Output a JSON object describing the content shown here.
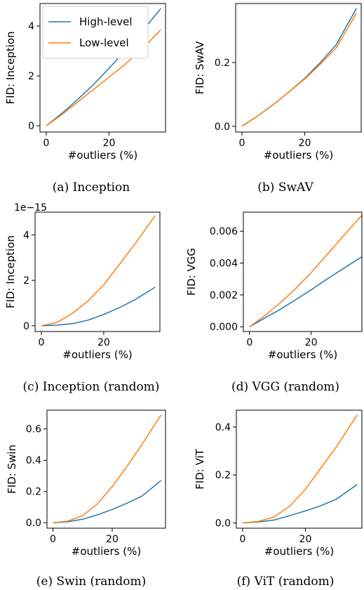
{
  "chart_data": [
    {
      "type": "line",
      "caption": "(a) Inception",
      "xlabel": "#outliers (%)",
      "ylabel": "FID: Inception",
      "xlim": [
        -2,
        38
      ],
      "ylim": [
        -0.25,
        4.9
      ],
      "xticks": [
        0,
        20
      ],
      "yticks": [
        0,
        2,
        4
      ],
      "ytick_labels": [
        "0",
        "2",
        "4"
      ],
      "scale_label": "",
      "legend": {
        "position": "top-left",
        "entries": [
          "High-level",
          "Low-level"
        ]
      },
      "series": [
        {
          "name": "High-level",
          "color": "#1f77b4",
          "x": [
            0,
            5,
            10,
            15,
            20,
            25,
            30,
            36.5
          ],
          "y": [
            0,
            0.5,
            1.05,
            1.65,
            2.3,
            3.0,
            3.7,
            4.7
          ]
        },
        {
          "name": "Low-level",
          "color": "#ff7f0e",
          "x": [
            0,
            5,
            10,
            15,
            20,
            25,
            30,
            36.5
          ],
          "y": [
            0,
            0.45,
            0.95,
            1.45,
            1.95,
            2.45,
            3.0,
            3.85
          ]
        }
      ]
    },
    {
      "type": "line",
      "caption": "(b) SwAV",
      "xlabel": "#outliers (%)",
      "ylabel": "FID: SwAV",
      "xlim": [
        -2,
        38
      ],
      "ylim": [
        -0.018,
        0.385
      ],
      "xticks": [
        0,
        20
      ],
      "yticks": [
        0,
        0.2
      ],
      "ytick_labels": [
        "0.0",
        "0.2"
      ],
      "scale_label": "",
      "series": [
        {
          "name": "High-level",
          "color": "#1f77b4",
          "x": [
            0,
            5,
            10,
            15,
            20,
            25,
            30,
            36.5
          ],
          "y": [
            0,
            0.032,
            0.068,
            0.108,
            0.15,
            0.2,
            0.255,
            0.37
          ]
        },
        {
          "name": "Low-level",
          "color": "#ff7f0e",
          "x": [
            0,
            5,
            10,
            15,
            20,
            25,
            30,
            36.5
          ],
          "y": [
            0,
            0.032,
            0.068,
            0.108,
            0.148,
            0.195,
            0.245,
            0.355
          ]
        }
      ]
    },
    {
      "type": "line",
      "caption": "(c) Inception (random)",
      "xlabel": "#outliers (%)",
      "ylabel": "FID: Inception",
      "xlim": [
        -2,
        38
      ],
      "ylim": [
        -0.25,
        5.0
      ],
      "xticks": [
        0,
        20
      ],
      "yticks": [
        0,
        2,
        4
      ],
      "ytick_labels": [
        "0",
        "2",
        "4"
      ],
      "scale_label": "1e−15",
      "series": [
        {
          "name": "High-level",
          "color": "#1f77b4",
          "x": [
            0,
            5,
            10,
            15,
            20,
            25,
            30,
            36.5
          ],
          "y": [
            0,
            0.03,
            0.1,
            0.25,
            0.5,
            0.8,
            1.15,
            1.7
          ]
        },
        {
          "name": "Low-level",
          "color": "#ff7f0e",
          "x": [
            0,
            5,
            10,
            15,
            20,
            25,
            30,
            36.5
          ],
          "y": [
            0,
            0.15,
            0.55,
            1.1,
            1.8,
            2.7,
            3.6,
            4.85
          ]
        }
      ]
    },
    {
      "type": "line",
      "caption": "(d) VGG (random)",
      "xlabel": "#outliers (%)",
      "ylabel": "FID: VGG",
      "xlim": [
        -2,
        36.5
      ],
      "ylim": [
        -0.0003,
        0.0072
      ],
      "xticks": [
        0,
        20
      ],
      "yticks": [
        0,
        0.002,
        0.004,
        0.006
      ],
      "ytick_labels": [
        "0.000",
        "0.002",
        "0.004",
        "0.006"
      ],
      "scale_label": "",
      "series": [
        {
          "name": "High-level",
          "color": "#1f77b4",
          "x": [
            0,
            5,
            10,
            15,
            20,
            25,
            30,
            36.5
          ],
          "y": [
            0,
            0.00055,
            0.0011,
            0.0017,
            0.00232,
            0.00297,
            0.0036,
            0.0044
          ]
        },
        {
          "name": "Low-level",
          "color": "#ff7f0e",
          "x": [
            0,
            5,
            10,
            15,
            20,
            25,
            30,
            36.5
          ],
          "y": [
            0,
            0.0007,
            0.0015,
            0.0024,
            0.0034,
            0.0045,
            0.0056,
            0.007
          ]
        }
      ]
    },
    {
      "type": "line",
      "caption": "(e) Swin (random)",
      "xlabel": "#outliers (%)",
      "ylabel": "FID: Swin",
      "xlim": [
        -2,
        38
      ],
      "ylim": [
        -0.035,
        0.72
      ],
      "xticks": [
        0,
        20
      ],
      "yticks": [
        0,
        0.2,
        0.4,
        0.6
      ],
      "ytick_labels": [
        "0.0",
        "0.2",
        "0.4",
        "0.6"
      ],
      "scale_label": "",
      "series": [
        {
          "name": "High-level",
          "color": "#1f77b4",
          "x": [
            0,
            5,
            10,
            15,
            20,
            25,
            30,
            36.5
          ],
          "y": [
            0,
            0.006,
            0.022,
            0.05,
            0.085,
            0.125,
            0.17,
            0.27
          ]
        },
        {
          "name": "Low-level",
          "color": "#ff7f0e",
          "x": [
            0,
            5,
            10,
            15,
            20,
            25,
            30,
            36.5
          ],
          "y": [
            0,
            0.01,
            0.045,
            0.12,
            0.23,
            0.36,
            0.5,
            0.69
          ]
        }
      ]
    },
    {
      "type": "line",
      "caption": "(f) ViT (random)",
      "xlabel": "#outliers (%)",
      "ylabel": "FID: ViT",
      "xlim": [
        -2,
        38
      ],
      "ylim": [
        -0.022,
        0.47
      ],
      "xticks": [
        0,
        20
      ],
      "yticks": [
        0,
        0.2,
        0.4
      ],
      "ytick_labels": [
        "0.0",
        "0.2",
        "0.4"
      ],
      "scale_label": "",
      "series": [
        {
          "name": "High-level",
          "color": "#1f77b4",
          "x": [
            0,
            5,
            10,
            15,
            20,
            25,
            30,
            36.5
          ],
          "y": [
            0,
            0.004,
            0.012,
            0.03,
            0.05,
            0.072,
            0.1,
            0.16
          ]
        },
        {
          "name": "Low-level",
          "color": "#ff7f0e",
          "x": [
            0,
            5,
            10,
            15,
            20,
            25,
            30,
            36.5
          ],
          "y": [
            0,
            0.006,
            0.025,
            0.07,
            0.14,
            0.23,
            0.32,
            0.45
          ]
        }
      ]
    }
  ]
}
